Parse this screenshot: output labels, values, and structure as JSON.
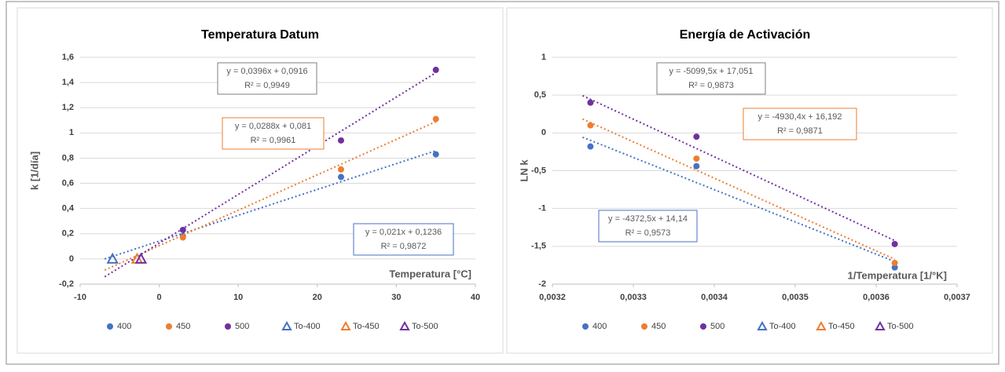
{
  "chart_data": [
    {
      "type": "scatter",
      "title": "Temperatura Datum",
      "x_label": "Temperatura [°C]",
      "y_label": "k [1/día]",
      "xlim": [
        -10,
        40
      ],
      "xticks": [
        -10,
        0,
        10,
        20,
        30,
        40
      ],
      "ylim": [
        -0.2,
        1.6
      ],
      "yticks": [
        {
          "value": -0.2,
          "label": "-0,2"
        },
        0,
        {
          "value": 0.2,
          "label": "0,2"
        },
        {
          "value": 0.4,
          "label": "0,4"
        },
        {
          "value": 0.6,
          "label": "0,6"
        },
        {
          "value": 0.8,
          "label": "0,8"
        },
        1,
        {
          "value": 1.2,
          "label": "1,2"
        },
        {
          "value": 1.4,
          "label": "1,4"
        },
        {
          "value": 1.6,
          "label": "1,6"
        }
      ],
      "grid": true,
      "series": [
        {
          "name": "400",
          "color": "#4472c4",
          "marker": "circle",
          "x": [
            3,
            23,
            35
          ],
          "values": [
            0.18,
            0.65,
            0.83
          ],
          "trendline": {
            "slope": 0.021,
            "intercept": 0.1236,
            "label": "y = 0,021x + 0,1236",
            "r2_label": "R² = 0,9872"
          }
        },
        {
          "name": "450",
          "color": "#ed7d31",
          "marker": "circle",
          "x": [
            3,
            23,
            35
          ],
          "values": [
            0.17,
            0.71,
            1.11
          ],
          "trendline": {
            "slope": 0.0288,
            "intercept": 0.081,
            "label": "y = 0,0288x + 0,081",
            "r2_label": "R² = 0,9961"
          }
        },
        {
          "name": "500",
          "color": "#7030a0",
          "marker": "circle",
          "x": [
            3,
            23,
            35
          ],
          "values": [
            0.23,
            0.94,
            1.5
          ],
          "trendline": {
            "slope": 0.0396,
            "intercept": 0.0916,
            "label": "y = 0,0396x + 0,0916",
            "r2_label": "R² = 0,9949"
          }
        },
        {
          "name": "To-400",
          "color": "#4472c4",
          "marker": "triangle",
          "x": [
            -5.9
          ],
          "values": [
            0
          ]
        },
        {
          "name": "To-450",
          "color": "#ed7d31",
          "marker": "triangle",
          "x": [
            -2.8
          ],
          "values": [
            0
          ]
        },
        {
          "name": "To-500",
          "color": "#7030a0",
          "marker": "triangle",
          "x": [
            -2.3
          ],
          "values": [
            0
          ]
        }
      ]
    },
    {
      "type": "scatter",
      "title": "Energía de Activación",
      "x_label": "1/Temperatura [1/°K]",
      "y_label": "LN k",
      "xlim": [
        0.0032,
        0.0037
      ],
      "xticks": [
        {
          "value": 0.0032,
          "label": "0,0032"
        },
        {
          "value": 0.0033,
          "label": "0,0033"
        },
        {
          "value": 0.0034,
          "label": "0,0034"
        },
        {
          "value": 0.0035,
          "label": "0,0035"
        },
        {
          "value": 0.0036,
          "label": "0,0036"
        },
        {
          "value": 0.0037,
          "label": "0,0037"
        }
      ],
      "ylim": [
        -2,
        1
      ],
      "yticks": [
        -2,
        {
          "value": -1.5,
          "label": "-1,5"
        },
        -1,
        {
          "value": -0.5,
          "label": "-0,5"
        },
        0,
        {
          "value": 0.5,
          "label": "0,5"
        },
        1
      ],
      "grid": true,
      "series": [
        {
          "name": "400",
          "color": "#4472c4",
          "marker": "circle",
          "x": [
            0.003247,
            0.003378,
            0.003623
          ],
          "values": [
            -0.18,
            -0.44,
            -1.78
          ],
          "trendline": {
            "slope": -4372.5,
            "intercept": 14.14,
            "label": "y = -4372,5x + 14,14",
            "r2_label": "R² = 0,9573"
          }
        },
        {
          "name": "450",
          "color": "#ed7d31",
          "marker": "circle",
          "x": [
            0.003247,
            0.003378,
            0.003623
          ],
          "values": [
            0.1,
            -0.34,
            -1.72
          ],
          "trendline": {
            "slope": -4930.4,
            "intercept": 16.192,
            "label": "y = -4930,4x + 16,192",
            "r2_label": "R² = 0,9871"
          }
        },
        {
          "name": "500",
          "color": "#7030a0",
          "marker": "circle",
          "x": [
            0.003247,
            0.003378,
            0.003623
          ],
          "values": [
            0.4,
            -0.05,
            -1.47
          ],
          "trendline": {
            "slope": -5099.5,
            "intercept": 17.051,
            "label": "y = -5099,5x + 17,051",
            "r2_label": "R² = 0,9873"
          }
        },
        {
          "name": "To-400",
          "color": "#4472c4",
          "marker": "triangle",
          "x": [],
          "values": []
        },
        {
          "name": "To-450",
          "color": "#ed7d31",
          "marker": "triangle",
          "x": [],
          "values": []
        },
        {
          "name": "To-500",
          "color": "#7030a0",
          "marker": "triangle",
          "x": [],
          "values": []
        }
      ]
    }
  ]
}
